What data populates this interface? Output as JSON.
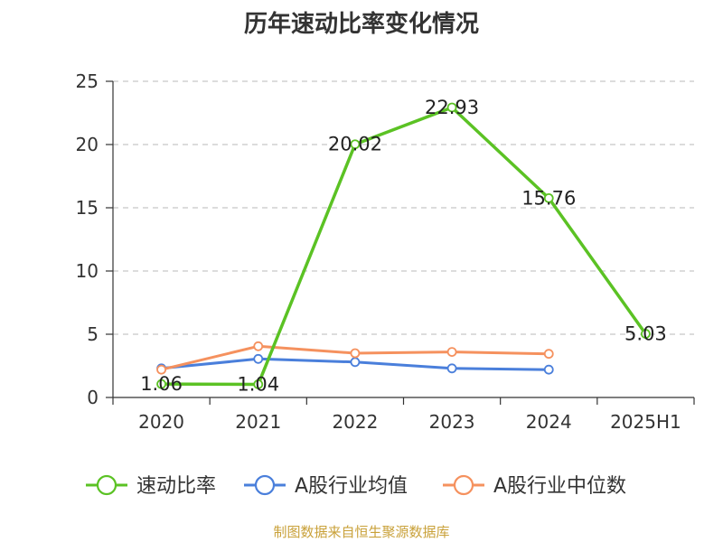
{
  "chart_data": {
    "type": "line",
    "title": "历年速动比率变化情况",
    "categories": [
      "2020",
      "2021",
      "2022",
      "2023",
      "2024",
      "2025H1"
    ],
    "ylim": [
      0,
      25
    ],
    "yticks": [
      0,
      5,
      10,
      15,
      20,
      25
    ],
    "grid": true,
    "legend_position": "bottom",
    "series": [
      {
        "name": "速动比率",
        "color": "#5bc224",
        "values": [
          1.06,
          1.04,
          20.02,
          22.93,
          15.76,
          5.03
        ],
        "labels": [
          "1.06",
          "1.04",
          "20.02",
          "22.93",
          "15.76",
          "5.03"
        ]
      },
      {
        "name": "A股行业均值",
        "color": "#4a7fdb",
        "values": [
          2.3,
          3.05,
          2.8,
          2.3,
          2.2,
          null
        ]
      },
      {
        "name": "A股行业中位数",
        "color": "#f5915e",
        "values": [
          2.2,
          4.05,
          3.5,
          3.6,
          3.45,
          null
        ]
      }
    ]
  },
  "footer": {
    "source": "制图数据来自恒生聚源数据库"
  }
}
